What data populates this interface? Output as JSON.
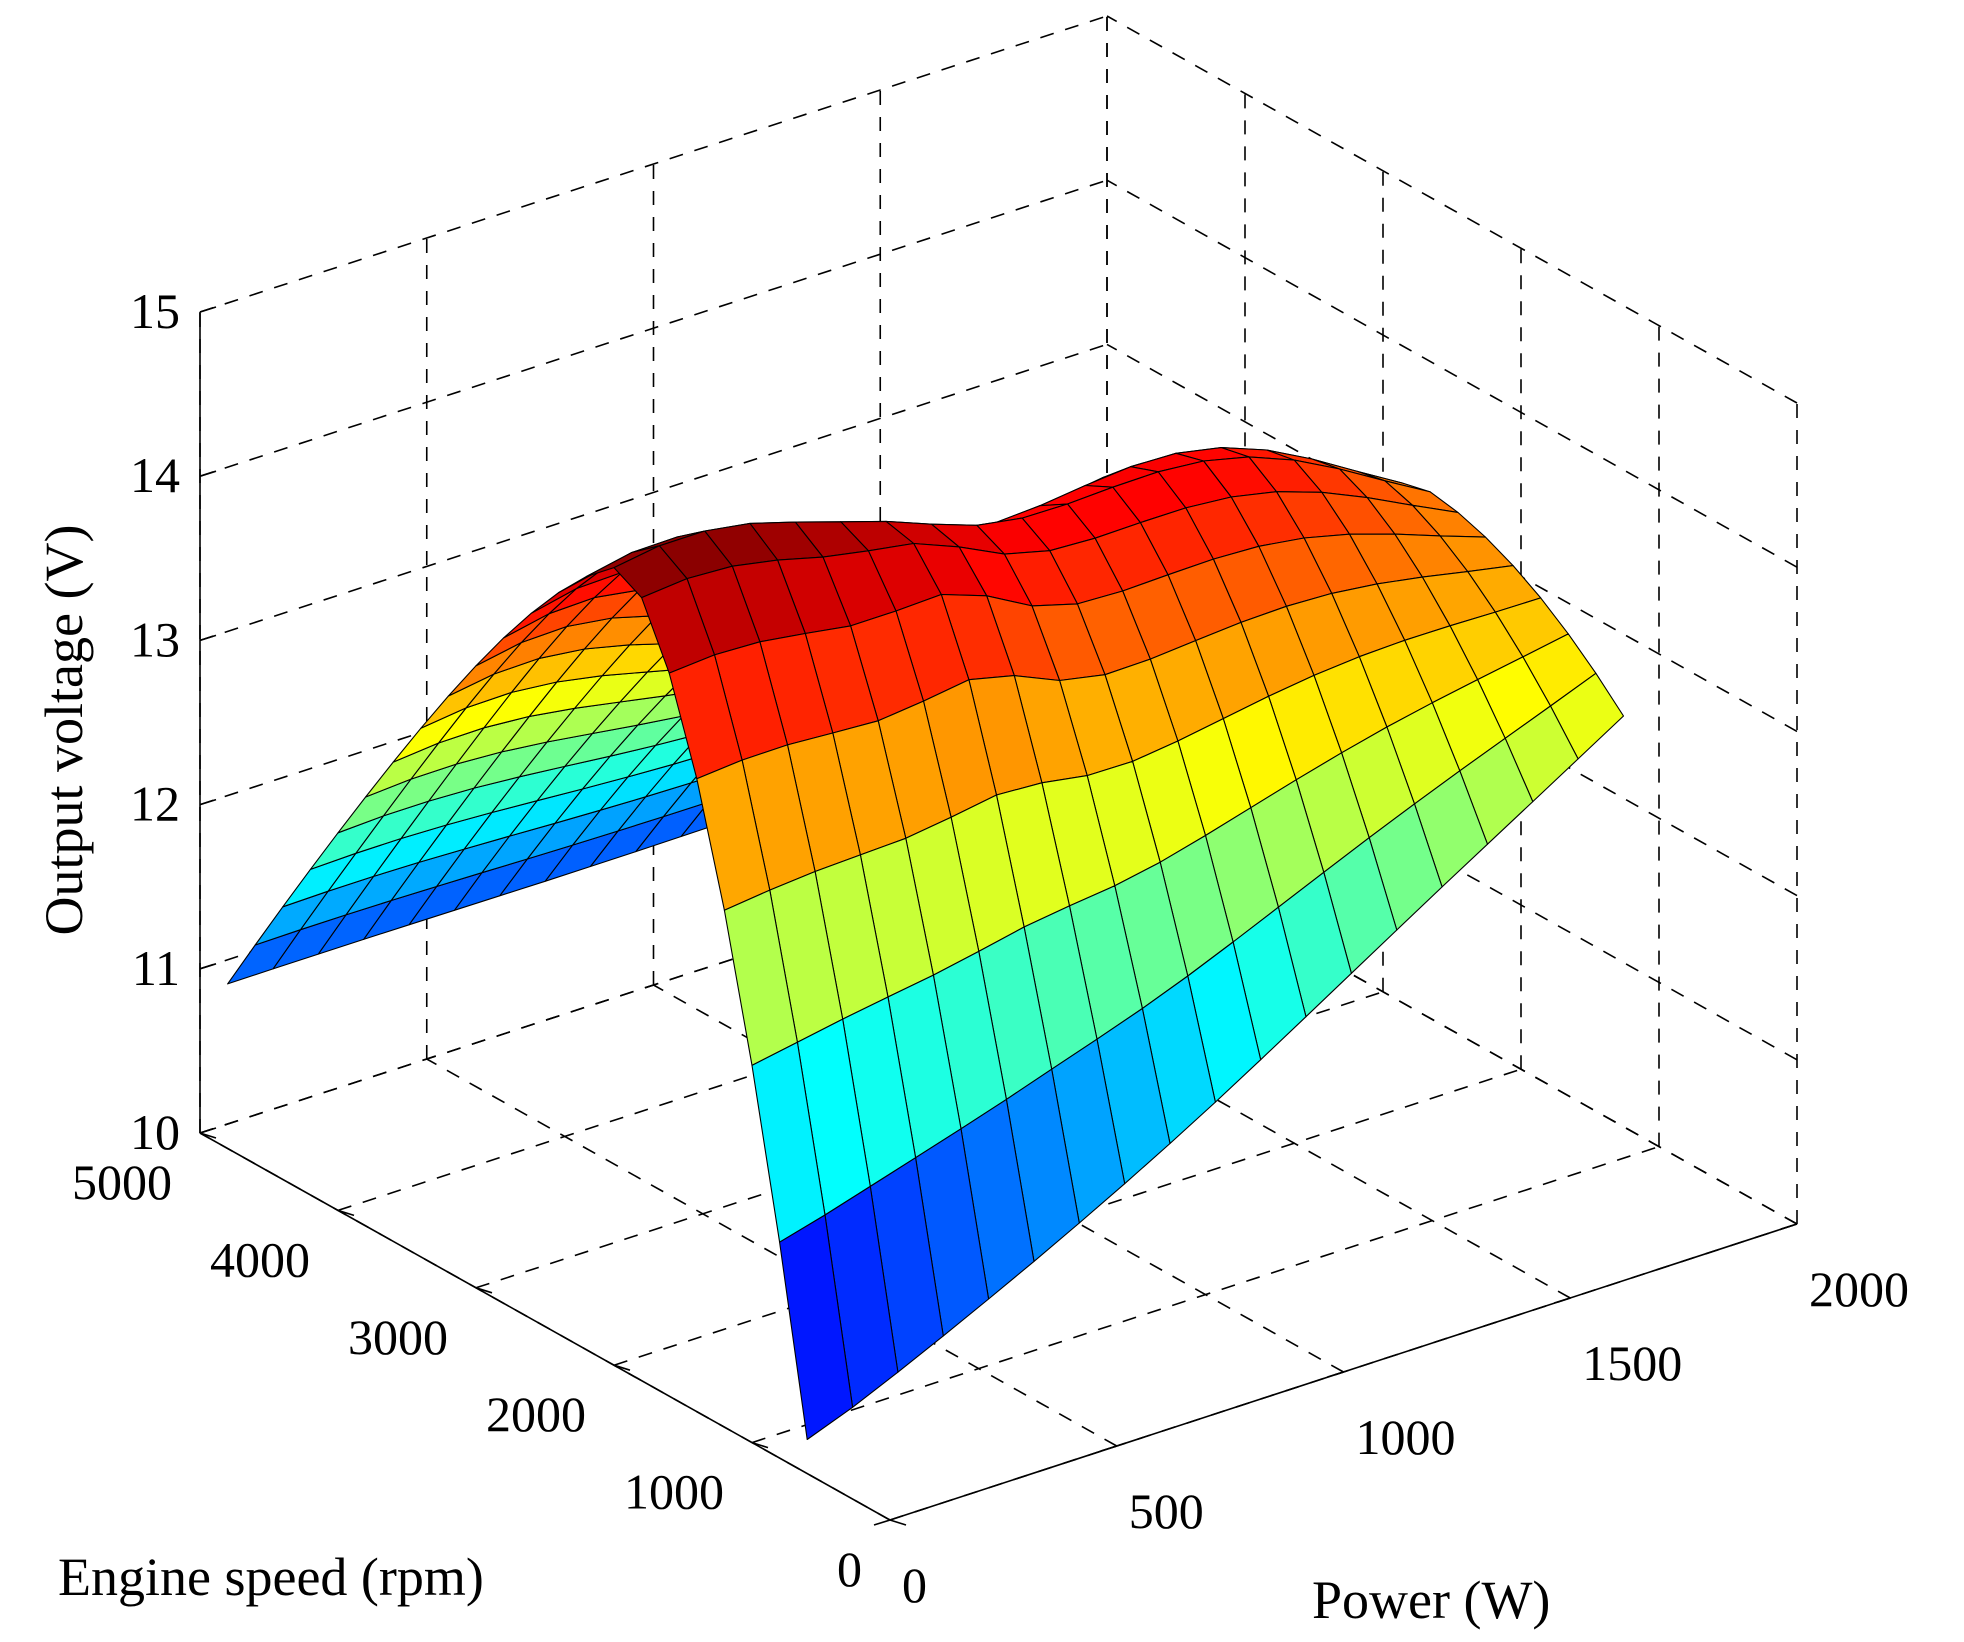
{
  "chart_data": {
    "type": "surface3d",
    "title": "",
    "xlabel": "Power (W)",
    "ylabel": "Engine speed (rpm)",
    "zlabel": "Output voltage (V)",
    "xlim": [
      0,
      2000
    ],
    "ylim": [
      0,
      5000
    ],
    "zlim": [
      10,
      15
    ],
    "x_ticks": [
      0,
      500,
      1000,
      1500,
      2000
    ],
    "y_ticks": [
      0,
      1000,
      2000,
      3000,
      4000,
      5000
    ],
    "z_ticks": [
      10,
      11,
      12,
      13,
      14,
      15
    ],
    "x_tick_labels": [
      "0",
      "500",
      "1000",
      "1500",
      "2000"
    ],
    "y_tick_labels": [
      "0",
      "1000",
      "2000",
      "3000",
      "4000",
      "5000"
    ],
    "z_tick_labels": [
      "10",
      "11",
      "12",
      "13",
      "14",
      "15"
    ],
    "colormap": "jet",
    "grid": true,
    "surface": {
      "x_range": [
        0,
        1800
      ],
      "y_range": [
        600,
        4800
      ],
      "power_samples": [
        0,
        100,
        200,
        300,
        400,
        500,
        600,
        700,
        800,
        900,
        1000,
        1100,
        1200,
        1300,
        1400,
        1500,
        1600,
        1700,
        1800
      ],
      "speed_samples": [
        600,
        800,
        1000,
        1200,
        1400,
        1600,
        1800,
        2000,
        2200,
        2400,
        2600,
        2800,
        3000,
        3200,
        3400,
        3600,
        3800,
        4000,
        4200,
        4400,
        4600,
        4800
      ],
      "z_min": 10.1,
      "z_max": 14.9,
      "ridge_voltage_at_zero_power": 14.8,
      "ridge_voltage_at_max_power": 13.8,
      "low_speed_voltage_at_zero_power": 10.2,
      "high_speed_voltage": 11.0
    },
    "colors": {
      "axis": "#000000",
      "background": "#ffffff"
    }
  }
}
